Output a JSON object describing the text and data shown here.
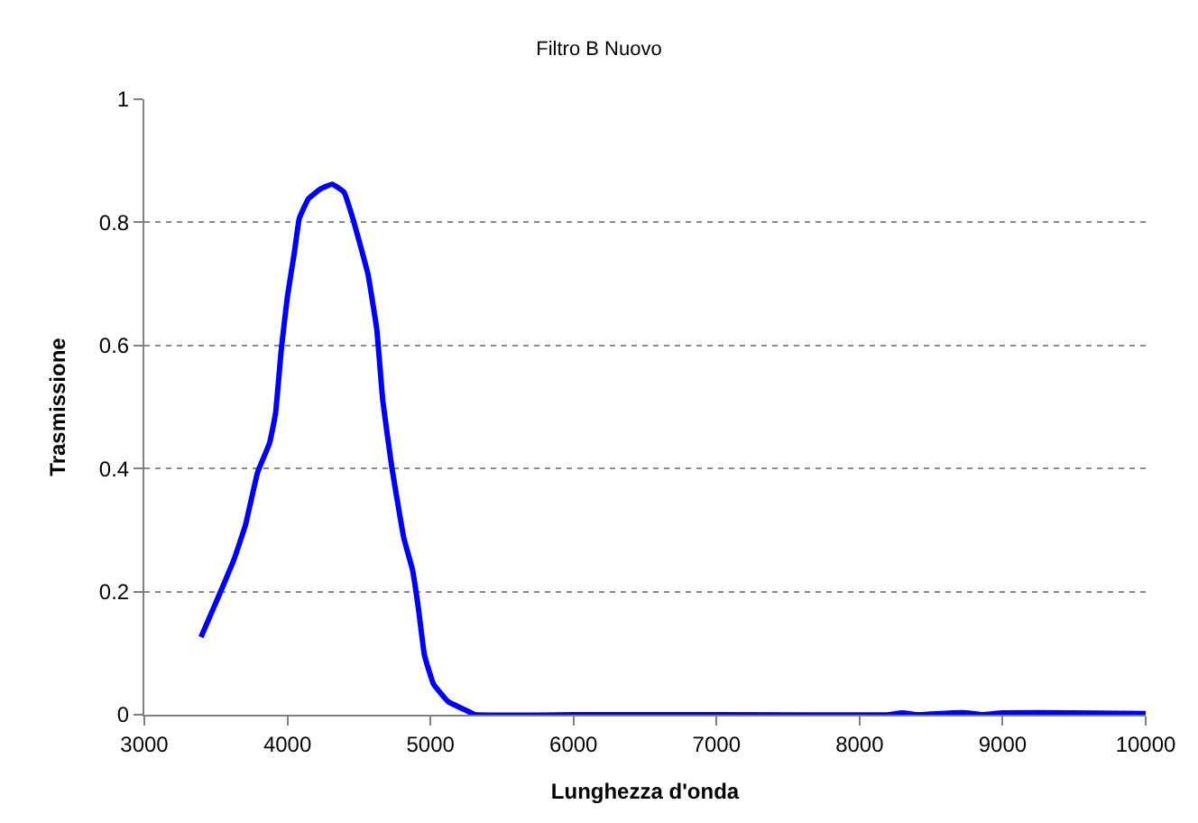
{
  "chart_data": {
    "type": "line",
    "title": "Filtro B Nuovo",
    "xlabel": "Lunghezza d'onda",
    "ylabel": "Trasmissione",
    "xlim": [
      3000,
      10000
    ],
    "xticks": [
      3000,
      4000,
      5000,
      6000,
      7000,
      8000,
      9000,
      10000
    ],
    "ylim": [
      0,
      1
    ],
    "yticks": [
      0,
      0.2,
      0.4,
      0.6,
      0.8,
      1
    ],
    "grid": "y",
    "legend": false,
    "marker": "none",
    "line_style": "solid",
    "series": [
      {
        "color": "#0000ff",
        "x": [
          3396,
          3500,
          3625,
          3708,
          3792,
          3875,
          3917,
          3958,
          4000,
          4050,
          4083,
          4146,
          4229,
          4313,
          4396,
          4458,
          4563,
          4625,
          4667,
          4729,
          4813,
          4875,
          4917,
          4958,
          5021,
          5125,
          5250,
          5313,
          6000,
          7000,
          8200,
          8300,
          8400,
          8650,
          8750,
          8850,
          9000,
          9500,
          10000
        ],
        "values": [
          0.126,
          0.182,
          0.251,
          0.309,
          0.394,
          0.441,
          0.489,
          0.595,
          0.679,
          0.753,
          0.806,
          0.838,
          0.854,
          0.862,
          0.849,
          0.806,
          0.716,
          0.626,
          0.51,
          0.404,
          0.288,
          0.235,
          0.171,
          0.097,
          0.05,
          0.021,
          0.007,
          0,
          0,
          0,
          0,
          0.003,
          0,
          0.003,
          0.003,
          0,
          0.003,
          0.003,
          0.002
        ]
      }
    ]
  }
}
